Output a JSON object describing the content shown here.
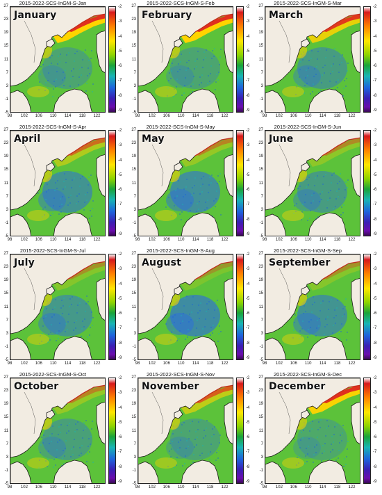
{
  "figure": {
    "panels": [
      {
        "title": "2015-2022-SCS-InGM-S-Jan",
        "month": "January"
      },
      {
        "title": "2015-2022-SCS-InGM-S-Feb",
        "month": "February"
      },
      {
        "title": "2015-2022-SCS-InGM-S-Mar",
        "month": "March"
      },
      {
        "title": "2015-2022-SCS-InGM-S-Apr",
        "month": "April"
      },
      {
        "title": "2015-2022-SCS-InGM-S-May",
        "month": "May"
      },
      {
        "title": "2015-2022-SCS-InGM-S-Jun",
        "month": "June"
      },
      {
        "title": "2015-2022-SCS-InGM-S-Jul",
        "month": "July"
      },
      {
        "title": "2015-2022-SCS-InGM-S-Aug",
        "month": "August"
      },
      {
        "title": "2015-2022-SCS-InGM-S-Sep",
        "month": "September"
      },
      {
        "title": "2015-2022-SCS-InGM-S-Oct",
        "month": "October"
      },
      {
        "title": "2015-2022-SCS-InGM-S-Nov",
        "month": "November"
      },
      {
        "title": "2015-2022-SCS-InGM-S-Dec",
        "month": "December"
      }
    ],
    "lat_ticks": [
      "27",
      "23",
      "19",
      "15",
      "11",
      "7",
      "3",
      "-1",
      "-5"
    ],
    "lon_ticks": [
      "98",
      "102",
      "106",
      "110",
      "114",
      "118",
      "122"
    ],
    "colorbar_ticks": [
      "-2",
      "-3",
      "-4",
      "-5",
      "-6",
      "-7",
      "-8",
      "-9"
    ],
    "colorbar_colors": [
      "#f6f6f6",
      "#d7191c",
      "#ff7f00",
      "#ffe600",
      "#8fd400",
      "#1aa43a",
      "#19b4b4",
      "#1e64dc",
      "#3a1fb4",
      "#6a0dad",
      "#2a0a3a"
    ],
    "colors": {
      "land": "#f2ece2",
      "coast": "#1a1a1a",
      "ocean_base": "#5cc23a",
      "shelf_high": "#ffd400",
      "coastal_max": "#e0301e",
      "basin_low": "#2e6fd8"
    }
  }
}
